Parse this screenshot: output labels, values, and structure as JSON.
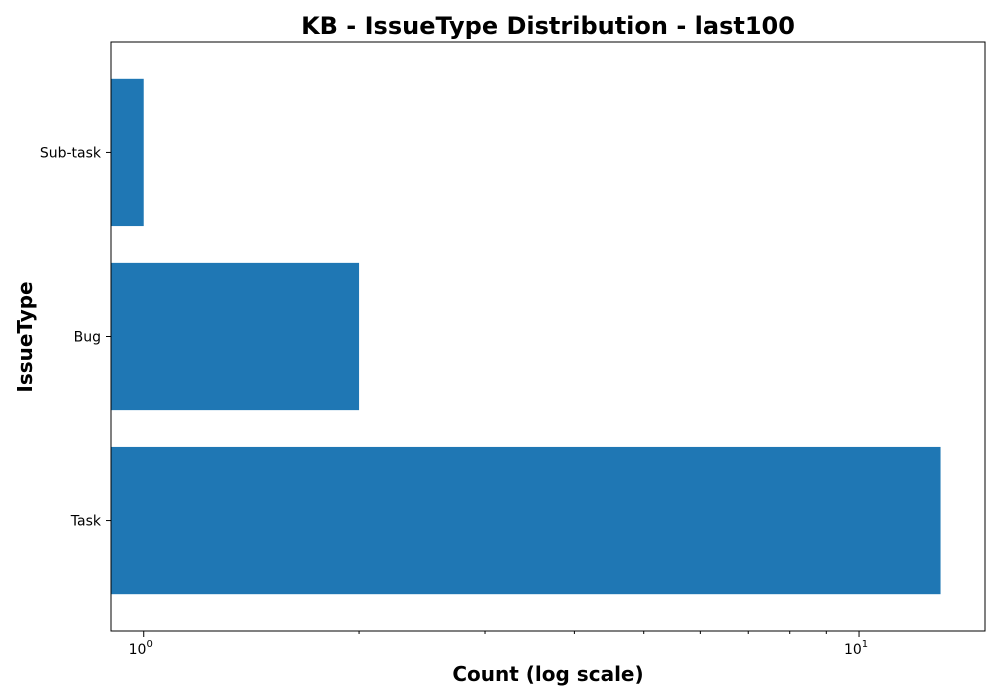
{
  "chart_data": {
    "type": "bar",
    "orientation": "horizontal",
    "title": "KB - IssueType Distribution - last100",
    "xlabel": "Count (log scale)",
    "ylabel": "IssueType",
    "categories": [
      "Sub-task",
      "Bug",
      "Task"
    ],
    "values": [
      1,
      2,
      13
    ],
    "x_scale": "log",
    "xlim": [
      0.9,
      15
    ],
    "x_major_ticks": [
      {
        "value": 1,
        "base": "10",
        "exp": "0"
      },
      {
        "value": 10,
        "base": "10",
        "exp": "1"
      }
    ],
    "x_minor_ticks": [
      2,
      3,
      4,
      5,
      6,
      7,
      8,
      9
    ],
    "bar_color": "#1f77b4",
    "grid": false,
    "legend": "none"
  }
}
